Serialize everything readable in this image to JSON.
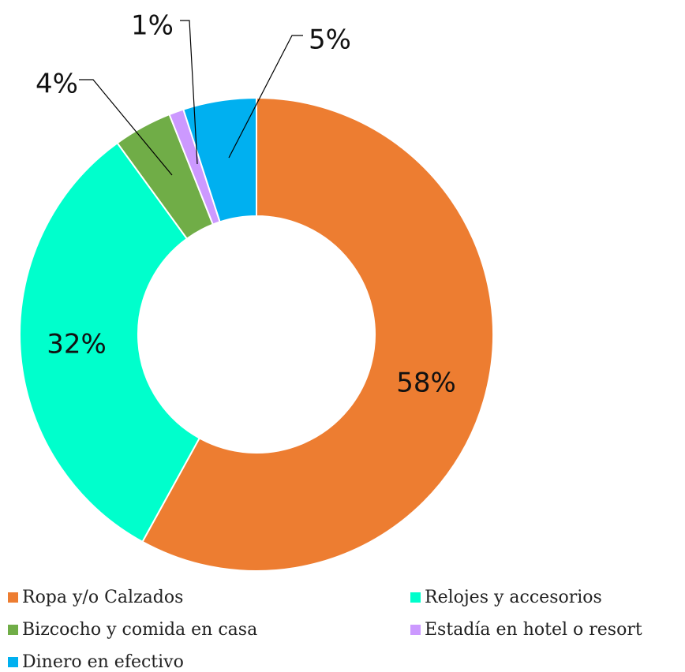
{
  "chart_data": {
    "type": "pie",
    "donut": true,
    "title": "",
    "legend_position": "bottom",
    "categories": [
      "Ropa y/o Calzados",
      "Relojes y accesorios",
      "Bizcocho y comida en casa",
      "Estadía en hotel o resort",
      "Dinero en efectivo"
    ],
    "values": [
      58,
      32,
      4,
      1,
      5
    ],
    "labels": [
      "58%",
      "32%",
      "4%",
      "1%",
      "5%"
    ],
    "colors": [
      "#ED7D31",
      "#00FFCC",
      "#70AD47",
      "#CC99FF",
      "#00B0F0"
    ]
  }
}
